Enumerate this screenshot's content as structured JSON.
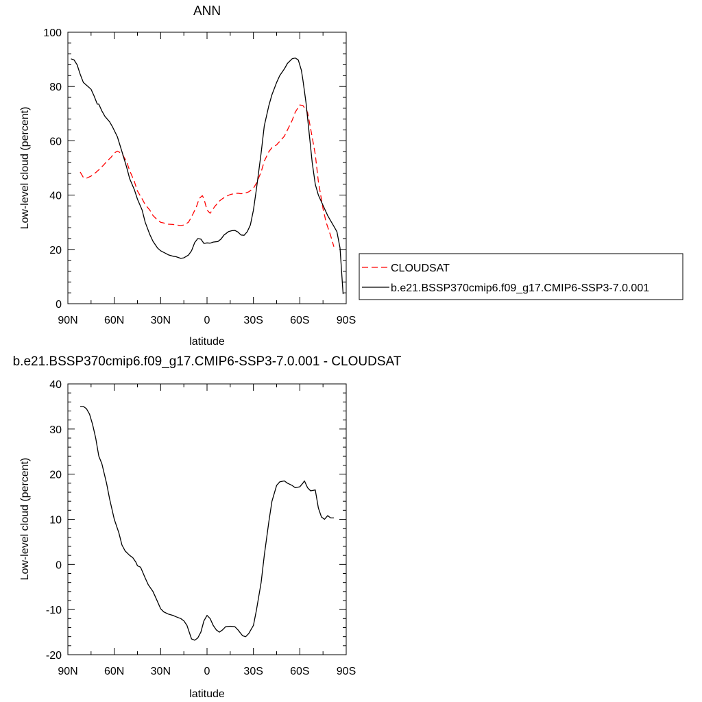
{
  "chart_data": [
    {
      "type": "line",
      "title": "ANN",
      "xlabel": "latitude",
      "ylabel": "Low-level cloud (percent)",
      "xlim": [
        90,
        -90
      ],
      "ylim": [
        0,
        100
      ],
      "x_ticks": [
        90,
        60,
        30,
        0,
        -30,
        -60,
        -90
      ],
      "x_tick_labels": [
        "90N",
        "60N",
        "30N",
        "0",
        "30S",
        "60S",
        "90S"
      ],
      "y_ticks": [
        0,
        20,
        40,
        60,
        80,
        100
      ],
      "y_tick_labels": [
        "0",
        "20",
        "40",
        "60",
        "80",
        "100"
      ],
      "legend_position": "right",
      "series": [
        {
          "name": "CLOUDSAT",
          "color": "#ff0000",
          "dash": true,
          "x": [
            82,
            80,
            78,
            75,
            72,
            70,
            67,
            65,
            62,
            60,
            58,
            55,
            52,
            50,
            47,
            45,
            42,
            40,
            37,
            35,
            32,
            30,
            27,
            25,
            22,
            20,
            17,
            15,
            12,
            10,
            7,
            5,
            3,
            2,
            0,
            -2,
            -5,
            -8,
            -10,
            -13,
            -15,
            -18,
            -20,
            -22,
            -25,
            -27,
            -30,
            -32,
            -35,
            -37,
            -40,
            -42,
            -45,
            -47,
            -50,
            -52,
            -55,
            -57,
            -60,
            -62,
            -65,
            -67,
            -70,
            -72,
            -75,
            -77,
            -80,
            -82
          ],
          "y": [
            48.5,
            46.5,
            46.2,
            47,
            48.3,
            49.3,
            51,
            52.3,
            54,
            55.5,
            56.2,
            55.3,
            52.3,
            49,
            45,
            41.5,
            38.6,
            36.5,
            34.5,
            32.5,
            30.8,
            30,
            29.6,
            29.3,
            29.2,
            29.0,
            28.8,
            29.0,
            30.0,
            32.0,
            35.5,
            38.8,
            39.8,
            38.6,
            34.5,
            33.3,
            35.8,
            37.8,
            38.7,
            39.7,
            40.2,
            40.6,
            40.7,
            40.5,
            40.8,
            41.2,
            42.5,
            44.5,
            48.5,
            52.5,
            56,
            57.5,
            58.5,
            59.8,
            61.7,
            64,
            67.5,
            70.5,
            73.2,
            73.0,
            70.5,
            64.5,
            55,
            45,
            35,
            30,
            25,
            21
          ]
        },
        {
          "name": "b.e21.BSSP370cmip6.f09_g17.CMIP6-SSP3-7.0.001",
          "color": "#000000",
          "dash": false,
          "x": [
            88,
            86,
            84,
            82,
            80,
            78,
            75,
            73,
            71,
            70,
            68,
            66,
            63,
            61,
            58,
            55,
            52,
            50,
            47,
            45,
            42,
            40,
            37,
            35,
            32,
            30,
            27,
            25,
            22,
            20,
            17,
            15,
            12,
            10,
            8,
            6,
            4,
            2,
            0,
            -2,
            -4,
            -7,
            -9,
            -11,
            -14,
            -16,
            -18,
            -20,
            -22,
            -24,
            -26,
            -28,
            -30,
            -32,
            -35,
            -37,
            -40,
            -42,
            -45,
            -47,
            -50,
            -52,
            -55,
            -57,
            -59,
            -61,
            -62,
            -64,
            -66,
            -68,
            -70,
            -72,
            -74,
            -76,
            -78,
            -80,
            -82,
            -84,
            -86,
            -88
          ],
          "y": [
            90.2,
            89.8,
            88,
            84.5,
            81.5,
            80.5,
            79,
            76.5,
            73.5,
            73.5,
            71,
            69,
            67,
            65,
            61.5,
            56,
            50.3,
            46,
            42,
            38.5,
            34.5,
            30,
            25.5,
            23,
            20.5,
            19.5,
            18.6,
            18,
            17.5,
            17.3,
            16.7,
            16.9,
            17.9,
            19.5,
            22.5,
            24,
            23.8,
            22.2,
            22.4,
            22.3,
            22.7,
            22.9,
            23.8,
            25.3,
            26.6,
            26.9,
            27.0,
            26.4,
            25.3,
            25.2,
            26.5,
            29.0,
            34.5,
            42.5,
            55.5,
            65.5,
            73,
            77,
            81.5,
            84,
            86.5,
            88.5,
            90.2,
            90.5,
            89.8,
            86,
            82.5,
            74,
            63,
            52,
            44,
            40,
            37.5,
            35,
            32.5,
            30.5,
            28.5,
            26.5,
            20.5,
            3.5
          ]
        }
      ]
    },
    {
      "type": "line",
      "title": "b.e21.BSSP370cmip6.f09_g17.CMIP6-SSP3-7.0.001 - CLOUDSAT",
      "xlabel": "latitude",
      "ylabel": "Low-level cloud (percent)",
      "xlim": [
        90,
        -90
      ],
      "ylim": [
        -20,
        40
      ],
      "x_ticks": [
        90,
        60,
        30,
        0,
        -30,
        -60,
        -90
      ],
      "x_tick_labels": [
        "90N",
        "60N",
        "30N",
        "0",
        "30S",
        "60S",
        "90S"
      ],
      "y_ticks": [
        -20,
        -10,
        0,
        10,
        20,
        30,
        40
      ],
      "y_tick_labels": [
        "-20",
        "-10",
        "0",
        "10",
        "20",
        "30",
        "40"
      ],
      "series": [
        {
          "color": "#000000",
          "dash": false,
          "x": [
            82,
            80,
            78,
            76,
            74,
            72,
            70,
            68,
            65,
            63,
            60,
            57,
            55,
            53,
            50,
            48,
            46,
            45,
            43,
            40,
            38,
            35,
            33,
            30,
            28,
            25,
            22,
            20,
            17,
            15,
            13,
            12,
            10,
            8,
            6,
            4,
            2,
            0,
            -2,
            -4,
            -6,
            -8,
            -10,
            -12,
            -15,
            -18,
            -20,
            -23,
            -25,
            -27,
            -30,
            -32,
            -35,
            -37,
            -40,
            -42,
            -45,
            -47,
            -50,
            -52,
            -55,
            -57,
            -60,
            -62,
            -63,
            -65,
            -67,
            -70,
            -72,
            -74,
            -76,
            -78,
            -80,
            -82
          ],
          "y": [
            35.0,
            35.0,
            34.5,
            33.3,
            31,
            28,
            24,
            22.3,
            18,
            14.5,
            10,
            7,
            4.3,
            3.0,
            2.0,
            1.5,
            0.5,
            -0.3,
            -0.6,
            -3,
            -4.5,
            -6,
            -7.5,
            -9.8,
            -10.5,
            -11,
            -11.3,
            -11.6,
            -12,
            -12.5,
            -13.5,
            -14.5,
            -16.5,
            -16.8,
            -16.3,
            -15,
            -12.5,
            -11.3,
            -12,
            -13.5,
            -14.5,
            -15,
            -14.5,
            -13.8,
            -13.7,
            -13.8,
            -14.5,
            -15.8,
            -16,
            -15.3,
            -13.5,
            -10,
            -4,
            2,
            9.5,
            14,
            17.5,
            18.3,
            18.5,
            18.0,
            17.5,
            17.0,
            17.2,
            18.0,
            18.5,
            17.0,
            16.3,
            16.5,
            12.5,
            10.5,
            10.0,
            10.8,
            10.3,
            10.3
          ]
        }
      ]
    }
  ]
}
